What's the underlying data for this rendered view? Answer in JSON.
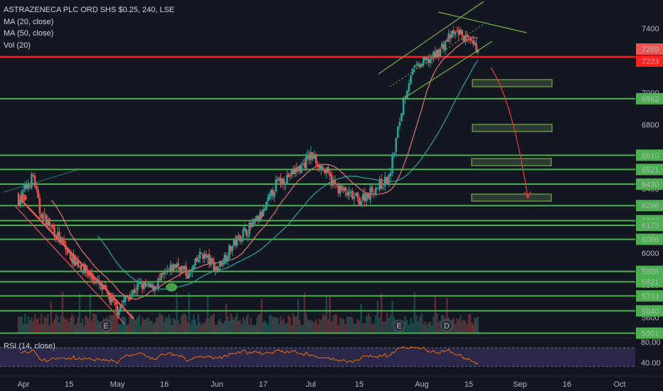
{
  "legend": {
    "symbol": "ASTRAZENECA PLC ORD SHS $0.25, 240, LSE",
    "ma20": "MA (20, close)",
    "ma50": "MA (50, close)",
    "vol": "Vol (20)"
  },
  "rsi_title": "RSI (14, close)",
  "colors": {
    "background": "#131722",
    "up": "#26a69a",
    "down": "#ef5350",
    "level_line": "#4caf50",
    "support_line": "#ff1f1f",
    "ma20": "#e57373",
    "ma50": "#26a69a",
    "rsi_line": "#ef6c00",
    "rsi_band": "#4a3e7a",
    "channel": "#7cb342",
    "arrow": "#e53935"
  },
  "chart_data": {
    "type": "candlestick",
    "symbol": "ASTRAZENECA PLC ORD SHS $0.25, 240, LSE",
    "x_ticks": [
      "Apr",
      "15",
      "May",
      "16",
      "Jun",
      "17",
      "Jul",
      "15",
      "Aug",
      "15",
      "Sep",
      "16",
      "Oct"
    ],
    "y_ticks": [
      5600,
      5800,
      6000,
      6200,
      6400,
      6600,
      6800,
      7000,
      7400
    ],
    "ylim": [
      5480,
      7560
    ],
    "price_badges": [
      {
        "value": "7269",
        "color": "#ef5350"
      },
      {
        "value": "7223",
        "color": "#ff1f1f"
      }
    ],
    "horizontal_levels": [
      {
        "value": 7223,
        "label": "7223",
        "color": "#ff1f1f"
      },
      {
        "value": 6962,
        "label": "6962",
        "color": "#4caf50"
      },
      {
        "value": 6610,
        "label": "6610",
        "color": "#4caf50"
      },
      {
        "value": 6521,
        "label": "6521",
        "color": "#4caf50"
      },
      {
        "value": 6430,
        "label": "6430",
        "color": "#4caf50"
      },
      {
        "value": 6296,
        "label": "6296",
        "color": "#4caf50"
      },
      {
        "value": 6202,
        "label": "6202",
        "color": "#4caf50"
      },
      {
        "value": 6173,
        "label": "6173",
        "color": "#4caf50"
      },
      {
        "value": 6086,
        "label": "6086",
        "color": "#4caf50"
      },
      {
        "value": 5886,
        "label": "5886",
        "color": "#4caf50"
      },
      {
        "value": 5821,
        "label": "5821",
        "color": "#4caf50"
      },
      {
        "value": 5733,
        "label": "5733",
        "color": "#4caf50"
      },
      {
        "value": 5640,
        "label": "5640",
        "color": "#4caf50"
      },
      {
        "value": 5501,
        "label": "5501",
        "color": "#4caf50"
      }
    ],
    "key_closes": [
      {
        "date": "Apr",
        "value": 6380
      },
      {
        "date": "May",
        "value": 5650
      },
      {
        "date": "16",
        "value": 5860
      },
      {
        "date": "Jun",
        "value": 5900
      },
      {
        "date": "17",
        "value": 6250
      },
      {
        "date": "Jul",
        "value": 6610
      },
      {
        "date": "15",
        "value": 6330
      },
      {
        "date": "Aug",
        "value": 7130
      },
      {
        "date": "15",
        "value": 7269
      }
    ],
    "event_markers": [
      "E",
      "E",
      "D"
    ],
    "rsi": {
      "title": "RSI (14, close)",
      "ticks": [
        80.0,
        40.0
      ],
      "upper": 70,
      "lower": 30,
      "ylim": [
        20,
        90
      ]
    }
  }
}
